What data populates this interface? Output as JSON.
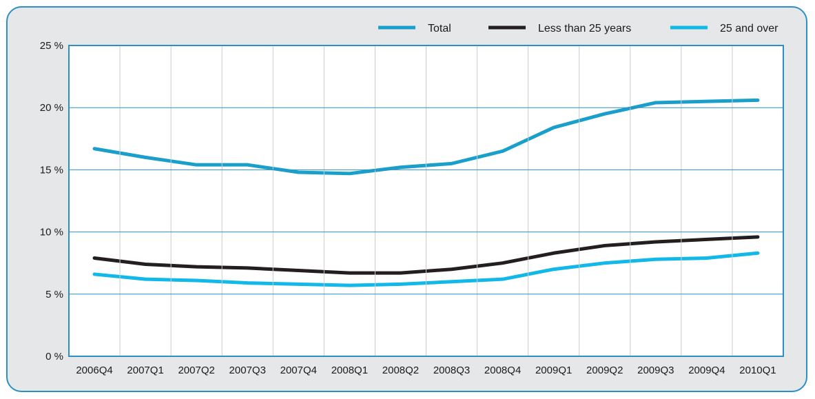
{
  "chart_data": {
    "type": "line",
    "categories": [
      "2006Q4",
      "2007Q1",
      "2007Q2",
      "2007Q3",
      "2007Q4",
      "2008Q1",
      "2008Q2",
      "2008Q3",
      "2008Q4",
      "2009Q1",
      "2009Q2",
      "2009Q3",
      "2009Q4",
      "2010Q1"
    ],
    "y_tick_labels": [
      "0 %",
      "5 %",
      "10 %",
      "15 %",
      "20 %",
      "25 %"
    ],
    "y_ticks": [
      0,
      5,
      10,
      15,
      20,
      25
    ],
    "ylim": [
      0,
      25
    ],
    "grid": true,
    "legend_position": "top-right",
    "series": [
      {
        "name": "Total",
        "color": "#1a9fcb",
        "values": [
          16.7,
          16.0,
          15.4,
          15.4,
          14.8,
          14.7,
          15.2,
          15.5,
          16.5,
          18.4,
          19.5,
          20.4,
          20.5,
          20.6
        ]
      },
      {
        "name": "Less than 25 years",
        "color": "#231f20",
        "values": [
          7.9,
          7.4,
          7.2,
          7.1,
          6.9,
          6.7,
          6.7,
          7.0,
          7.5,
          8.3,
          8.9,
          9.2,
          9.4,
          9.6
        ]
      },
      {
        "name": "25 and over",
        "color": "#12b8e8",
        "values": [
          6.6,
          6.2,
          6.1,
          5.9,
          5.8,
          5.7,
          5.8,
          6.0,
          6.2,
          7.0,
          7.5,
          7.8,
          7.9,
          8.3
        ]
      }
    ]
  }
}
